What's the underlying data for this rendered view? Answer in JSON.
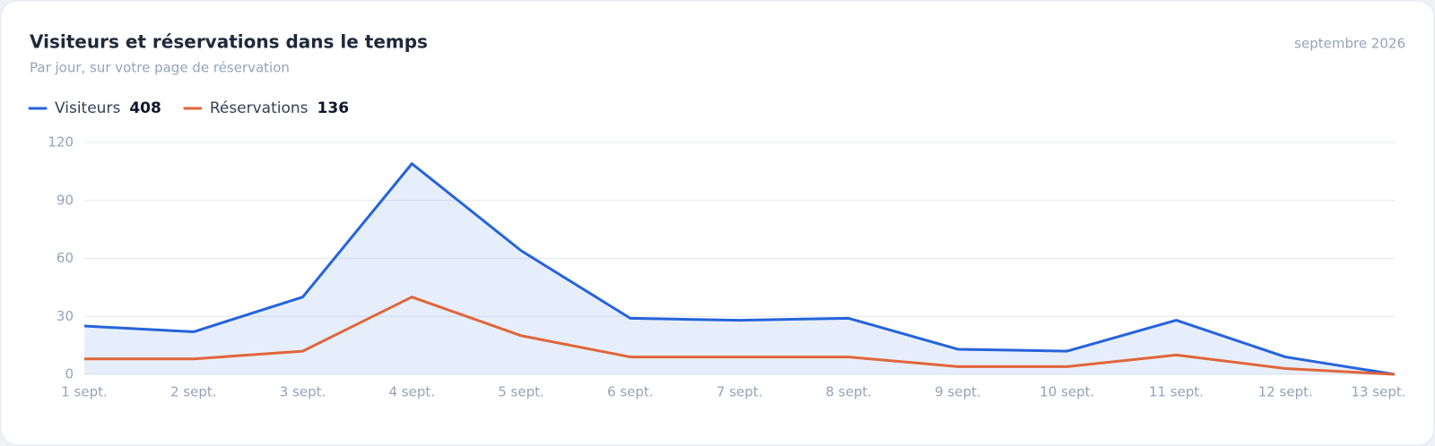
{
  "header": {
    "title": "Visiteurs et réservations dans le temps",
    "subtitle": "Par jour, sur votre page de réservation",
    "period": "septembre 2026"
  },
  "chart_data": {
    "type": "line",
    "categories": [
      "1 sept.",
      "2 sept.",
      "3 sept.",
      "4 sept.",
      "5 sept.",
      "6 sept.",
      "7 sept.",
      "8 sept.",
      "9 sept.",
      "10 sept.",
      "11 sept.",
      "12 sept.",
      "13 sept."
    ],
    "series": [
      {
        "name": "Visiteurs",
        "total": 408,
        "color": "#2563db",
        "area": true,
        "values": [
          25,
          22,
          40,
          109,
          64,
          29,
          28,
          29,
          13,
          12,
          28,
          9,
          0
        ]
      },
      {
        "name": "Réservations",
        "total": 136,
        "color": "#e0653a",
        "area": false,
        "values": [
          8,
          8,
          12,
          40,
          20,
          9,
          9,
          9,
          4,
          4,
          10,
          3,
          0
        ]
      }
    ],
    "ylim": [
      0,
      120
    ],
    "yticks": [
      0,
      30,
      60,
      90,
      120
    ],
    "grid": true
  }
}
